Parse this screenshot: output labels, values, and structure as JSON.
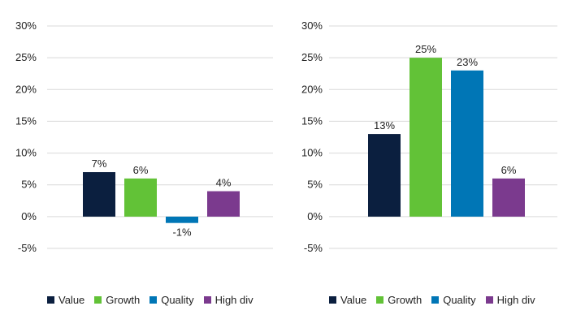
{
  "chart_data": [
    {
      "type": "bar",
      "categories": [
        "Value",
        "Growth",
        "Quality",
        "High div"
      ],
      "values": [
        7,
        6,
        -1,
        4
      ],
      "data_labels": [
        "7%",
        "6%",
        "-1%",
        "4%"
      ],
      "ylim": [
        -5,
        30
      ],
      "yticks": [
        30,
        25,
        20,
        15,
        10,
        5,
        0,
        -5
      ],
      "ytick_labels": [
        "30%",
        "25%",
        "20%",
        "15%",
        "10%",
        "5%",
        "0%",
        "-5%"
      ],
      "grid": true,
      "legend": "bottom",
      "title": "",
      "xlabel": "",
      "ylabel": ""
    },
    {
      "type": "bar",
      "categories": [
        "Value",
        "Growth",
        "Quality",
        "High div"
      ],
      "values": [
        13,
        25,
        23,
        6
      ],
      "data_labels": [
        "13%",
        "25%",
        "23%",
        "6%"
      ],
      "ylim": [
        -5,
        30
      ],
      "yticks": [
        30,
        25,
        20,
        15,
        10,
        5,
        0,
        -5
      ],
      "ytick_labels": [
        "30%",
        "25%",
        "20%",
        "15%",
        "10%",
        "5%",
        "0%",
        "-5%"
      ],
      "grid": true,
      "legend": "bottom",
      "title": "",
      "xlabel": "",
      "ylabel": ""
    }
  ],
  "colors": {
    "Value": "#0b1f3f",
    "Growth": "#62c237",
    "Quality": "#0076b6",
    "High div": "#7b3a8e",
    "grid": "#d9d9d9",
    "text": "#222222"
  }
}
